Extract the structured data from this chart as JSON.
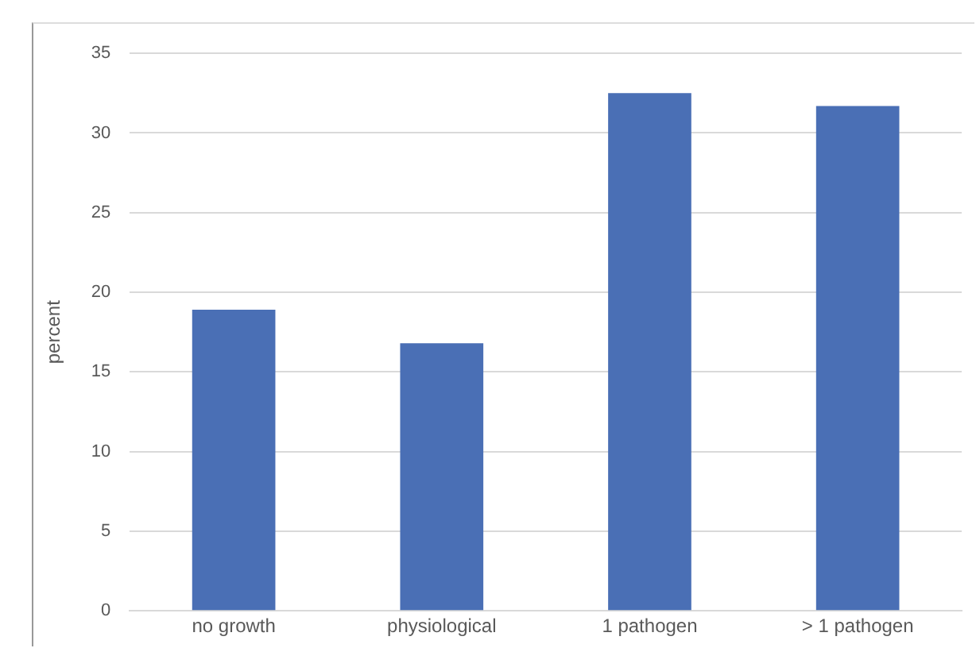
{
  "chart_data": {
    "type": "bar",
    "ylabel": "percent",
    "categories": [
      "no growth",
      "physiological",
      "1 pathogen",
      "> 1 pathogen"
    ],
    "values": [
      18.9,
      16.8,
      32.5,
      31.7
    ],
    "color": "#4a6fb5",
    "ylim": [
      0,
      35
    ],
    "yticks": [
      0,
      5,
      10,
      15,
      20,
      25,
      30,
      35
    ],
    "grid": "y"
  }
}
